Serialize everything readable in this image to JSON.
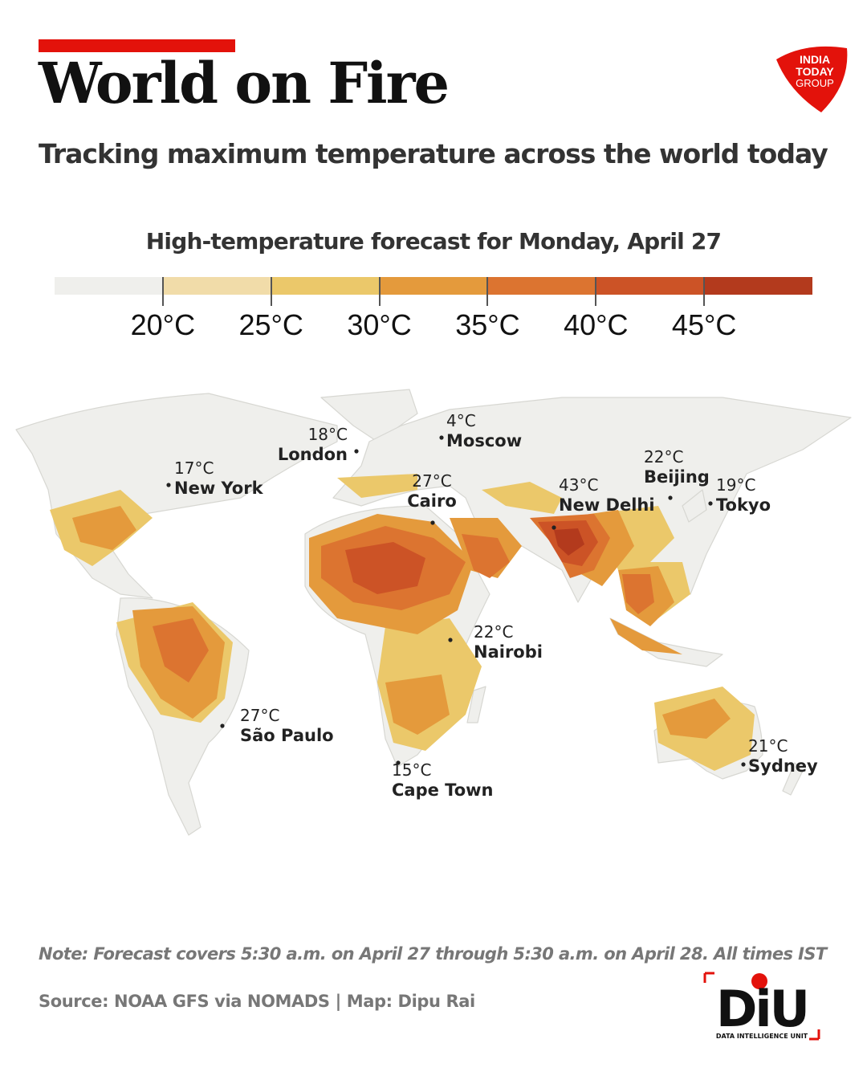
{
  "header": {
    "title": "World on Fire",
    "subtitle": "Tracking maximum temperature across the world today",
    "accent_color": "#e3120b"
  },
  "brand_logo": {
    "text_lines": [
      "INDIA",
      "TODAY",
      "GROUP"
    ],
    "color": "#e3120b"
  },
  "legend": {
    "title": "High-temperature forecast for Monday, April 27",
    "colors": [
      "#efefec",
      "#f1dca9",
      "#ebc86a",
      "#e49a3c",
      "#dc7430",
      "#cc5326",
      "#b33a1d"
    ],
    "tick_labels": [
      "20°C",
      "25°C",
      "30°C",
      "35°C",
      "40°C",
      "45°C"
    ]
  },
  "map": {
    "ocean_color": "#ffffff",
    "land_color": "#efefec",
    "cities": [
      {
        "name": "New York",
        "temp": "17°C"
      },
      {
        "name": "London",
        "temp": "18°C"
      },
      {
        "name": "Moscow",
        "temp": "4°C"
      },
      {
        "name": "Cairo",
        "temp": "27°C"
      },
      {
        "name": "New Delhi",
        "temp": "43°C"
      },
      {
        "name": "Beijing",
        "temp": "22°C"
      },
      {
        "name": "Tokyo",
        "temp": "19°C"
      },
      {
        "name": "Nairobi",
        "temp": "22°C"
      },
      {
        "name": "São Paulo",
        "temp": "27°C"
      },
      {
        "name": "Cape Town",
        "temp": "15°C"
      },
      {
        "name": "Sydney",
        "temp": "21°C"
      }
    ]
  },
  "footer": {
    "note": "Note: Forecast covers 5:30 a.m. on April 27 through 5:30 a.m. on April 28. All times IST",
    "source": "Source: NOAA GFS via NOMADS | Map: Dipu Rai"
  },
  "unit_logo": {
    "letters": "DiU",
    "caption": "DATA INTELLIGENCE UNIT",
    "accent_color": "#e3120b"
  }
}
